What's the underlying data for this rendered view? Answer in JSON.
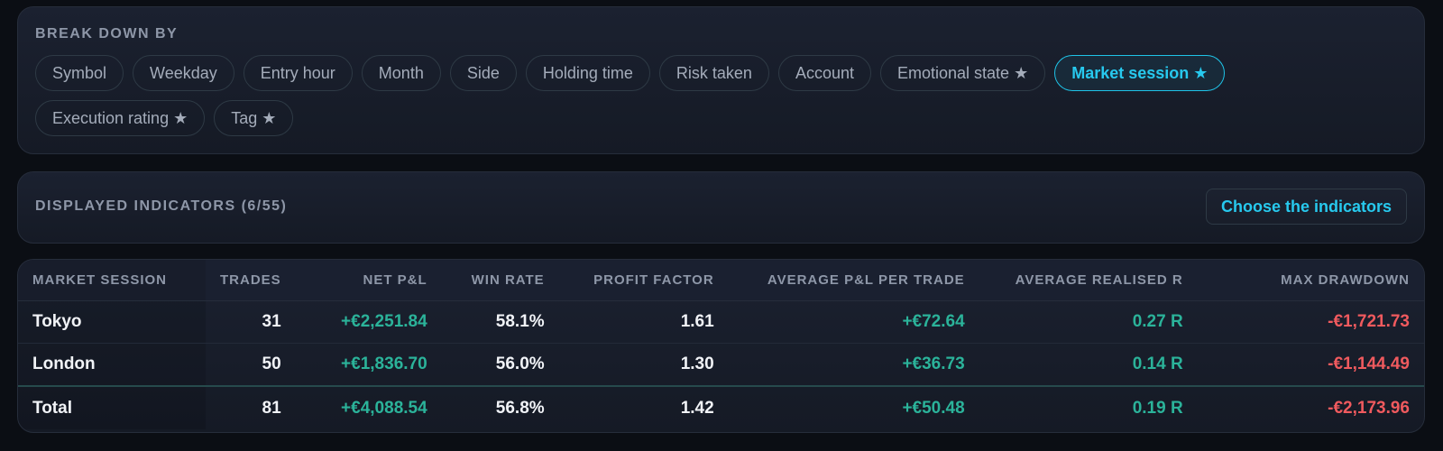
{
  "breakdown": {
    "label": "BREAK DOWN BY",
    "chips_row1": [
      "Symbol",
      "Weekday",
      "Entry hour",
      "Month",
      "Side",
      "Holding time",
      "Risk taken",
      "Account",
      "Emotional state ★",
      "Market session ★"
    ],
    "chips_row2": [
      "Execution rating ★",
      "Tag ★"
    ],
    "active": "Market session ★"
  },
  "indicators": {
    "label": "DISPLAYED INDICATORS (6/55)",
    "choose_button": "Choose the indicators"
  },
  "table": {
    "headers": [
      "MARKET SESSION",
      "TRADES",
      "NET P&L",
      "WIN RATE",
      "PROFIT FACTOR",
      "AVERAGE P&L PER TRADE",
      "AVERAGE REALISED R",
      "MAX DRAWDOWN"
    ],
    "rows": [
      [
        "Tokyo",
        "31",
        "+€2,251.84",
        "58.1%",
        "1.61",
        "+€72.64",
        "0.27 R",
        "-€1,721.73"
      ],
      [
        "London",
        "50",
        "+€1,836.70",
        "56.0%",
        "1.30",
        "+€36.73",
        "0.14 R",
        "-€1,144.49"
      ]
    ],
    "total": [
      "Total",
      "81",
      "+€4,088.54",
      "56.8%",
      "1.42",
      "+€50.48",
      "0.19 R",
      "-€2,173.96"
    ]
  },
  "colors": {
    "accent": "#27c9ee",
    "positive": "#2bb39a",
    "negative": "#f05a5e"
  }
}
